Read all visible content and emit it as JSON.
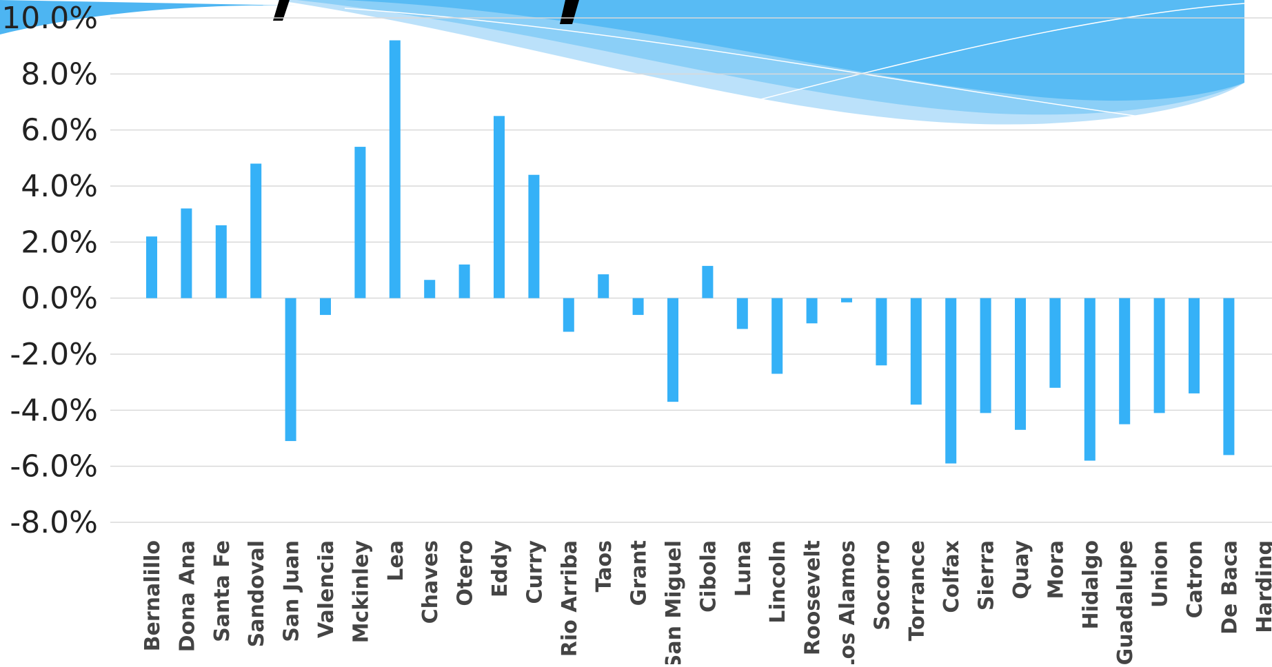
{
  "chart_data": {
    "type": "bar",
    "title": "",
    "xlabel": "",
    "ylabel": "",
    "ylim": [
      -8,
      10
    ],
    "y_ticks": [
      "10.0%",
      "8.0%",
      "6.0%",
      "4.0%",
      "2.0%",
      "0.0%",
      "-2.0%",
      "-4.0%",
      "-6.0%",
      "-8.0%"
    ],
    "y_tick_values": [
      10,
      8,
      6,
      4,
      2,
      0,
      -2,
      -4,
      -6,
      -8
    ],
    "grid": true,
    "bar_color": "#35b1f7",
    "categories": [
      "Bernalillo",
      "Dona Ana",
      "Santa Fe",
      "Sandoval",
      "San Juan",
      "Valencia",
      "Mckinley",
      "Lea",
      "Chaves",
      "Otero",
      "Eddy",
      "Curry",
      "Rio Arriba",
      "Taos",
      "Grant",
      "San Miguel",
      "Cibola",
      "Luna",
      "Lincoln",
      "Roosevelt",
      "Los Alamos",
      "Socorro",
      "Torrance",
      "Colfax",
      "Sierra",
      "Quay",
      "Mora",
      "Hidalgo",
      "Guadalupe",
      "Union",
      "Catron",
      "De Baca",
      "Harding"
    ],
    "values": [
      2.2,
      3.2,
      2.6,
      4.8,
      -5.1,
      -0.6,
      5.4,
      9.2,
      0.65,
      1.2,
      6.5,
      4.4,
      -1.2,
      0.85,
      -0.6,
      -3.7,
      1.15,
      -1.1,
      -2.7,
      -0.9,
      -0.15,
      -2.4,
      -3.8,
      -5.9,
      -4.1,
      -4.7,
      -3.2,
      -5.8,
      -4.5,
      -4.1,
      -3.4,
      -5.6,
      0
    ]
  },
  "decoration": {
    "wave_color_dark": "#4db5f2",
    "wave_color_light": "#a8d9f9",
    "title_fragment_color": "#000000"
  }
}
